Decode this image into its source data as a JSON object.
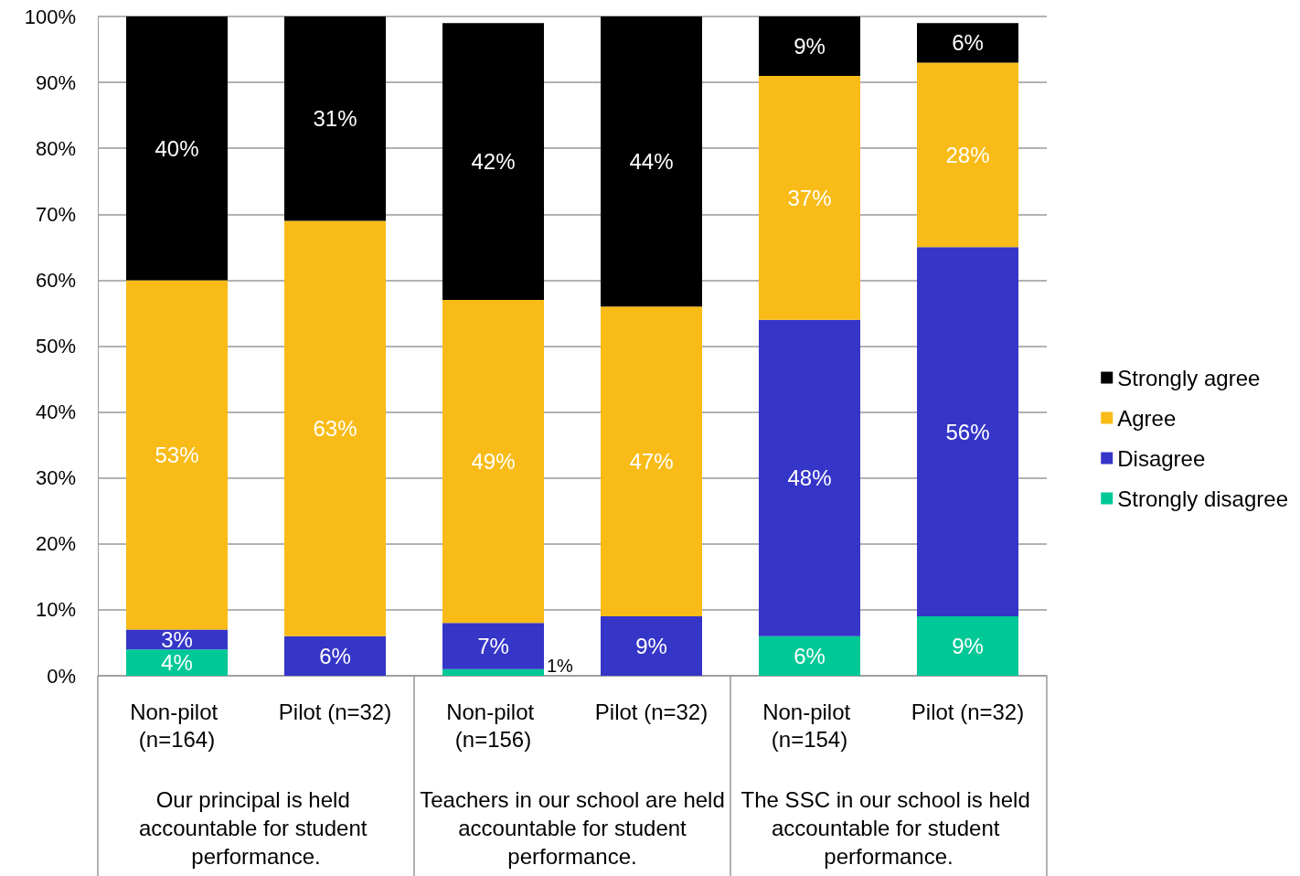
{
  "chart_data": {
    "type": "bar",
    "stacked": true,
    "categories": [
      "Non-pilot (n=164)",
      "Pilot (n=32)",
      "Non-pilot (n=156)",
      "Pilot (n=32)",
      "Non-pilot (n=154)",
      "Pilot (n=32)"
    ],
    "series": [
      {
        "name": "Strongly disagree",
        "color": "#00c896",
        "values": [
          4,
          0,
          1,
          0,
          6,
          9
        ],
        "value_labels": [
          "4%",
          null,
          "1%",
          null,
          "6%",
          "9%"
        ]
      },
      {
        "name": "Disagree",
        "color": "#3535c8",
        "values": [
          3,
          6,
          7,
          9,
          48,
          56
        ],
        "value_labels": [
          "3%",
          "6%",
          "7%",
          "9%",
          "48%",
          "56%"
        ]
      },
      {
        "name": "Agree",
        "color": "#f8bb17",
        "values": [
          53,
          63,
          49,
          47,
          37,
          28
        ],
        "value_labels": [
          "53%",
          "63%",
          "49%",
          "47%",
          "37%",
          "28%"
        ]
      },
      {
        "name": "Strongly agree",
        "color": "#000000",
        "values": [
          40,
          31,
          42,
          44,
          9,
          6
        ],
        "value_labels": [
          "40%",
          "31%",
          "42%",
          "44%",
          "9%",
          "6%"
        ]
      }
    ],
    "ylim": [
      0,
      100
    ],
    "yticks": [
      {
        "value": 0,
        "label": "0%"
      },
      {
        "value": 10,
        "label": "10%"
      },
      {
        "value": 20,
        "label": "20%"
      },
      {
        "value": 30,
        "label": "30%"
      },
      {
        "value": 40,
        "label": "40%"
      },
      {
        "value": 50,
        "label": "50%"
      },
      {
        "value": 60,
        "label": "60%"
      },
      {
        "value": 70,
        "label": "70%"
      },
      {
        "value": 80,
        "label": "80%"
      },
      {
        "value": 90,
        "label": "90%"
      },
      {
        "value": 100,
        "label": "100%"
      }
    ],
    "grid": "y",
    "legend": "right",
    "annotations": [
      "Our principal is held accountable for student performance.",
      "Teachers in our school are held accountable for student performance.",
      "The SSC in our school is held accountable for student performance."
    ]
  }
}
